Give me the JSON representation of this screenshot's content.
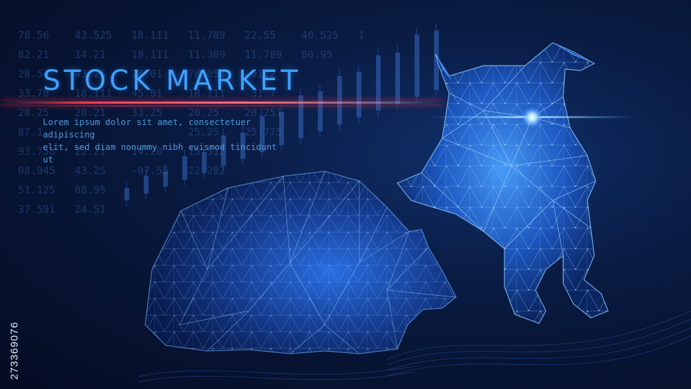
{
  "title": "STOCK MARKET",
  "subtitle_line1": "Lorem ipsum dolor sit amet, consectetuer adipiscing",
  "subtitle_line2": "elit, sed diam nonummy nibh euismod tincidunt ut",
  "stock_id": "273369076",
  "ticker_rows": [
    [
      "78.56",
      "43.525",
      "18.111",
      "11.789",
      "22.55",
      "40.525",
      "1"
    ],
    [
      "82.21",
      "14.21",
      "18.111",
      "11.389",
      "11.789",
      "80.95",
      ""
    ],
    [
      "28.54",
      "43.25",
      "78.01",
      "78.056",
      "-01.2",
      "",
      ""
    ],
    [
      "33.70",
      "18.111",
      "45.01",
      "18.111",
      "-31.7",
      "",
      ""
    ],
    [
      "20.25",
      "20.21",
      "33.25",
      "20.25",
      "20.251",
      "",
      ""
    ],
    [
      "87.1",
      "",
      "",
      "25.25",
      "25.775",
      "",
      ""
    ],
    [
      "93.758",
      "22.21",
      "14.20",
      "15.512",
      "",
      "",
      ""
    ],
    [
      "08.945",
      "43.25",
      "-07.55",
      "22.282",
      "",
      "",
      ""
    ],
    [
      "51.125",
      "08.95",
      "",
      "",
      "",
      "",
      ""
    ],
    [
      "37.591",
      "24.51",
      "",
      "",
      "",
      "",
      ""
    ]
  ],
  "colors": {
    "background": "#071433",
    "accent": "#3ea0ff",
    "beam": "#ff3c55",
    "animal_glow": "#2f7dff"
  },
  "icons": [
    "bull-figure",
    "bear-figure",
    "candlestick-chart"
  ]
}
